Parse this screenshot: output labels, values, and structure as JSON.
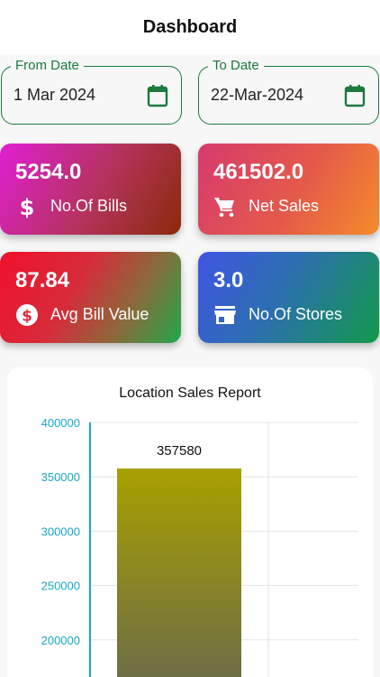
{
  "header": {
    "title": "Dashboard"
  },
  "filters": {
    "from": {
      "label": "From Date",
      "value": "1 Mar 2024",
      "icon": "calendar-icon"
    },
    "to": {
      "label": "To Date",
      "value": "22-Mar-2024",
      "icon": "calendar-icon"
    }
  },
  "cards": [
    {
      "value": "5254.0",
      "label": "No.Of Bills",
      "icon": "dollar-icon"
    },
    {
      "value": "461502.0",
      "label": "Net Sales",
      "icon": "cart-icon"
    },
    {
      "value": "87.84",
      "label": "Avg Bill Value",
      "icon": "dollar-circle-icon"
    },
    {
      "value": "3.0",
      "label": "No.Of Stores",
      "icon": "store-icon"
    }
  ],
  "colors": {
    "accent": "#1b7a3c",
    "axis": "#1aa6c8",
    "bar_top": "#a8a000",
    "bar_bottom": "#6a6a4a"
  },
  "chart_data": {
    "type": "bar",
    "title": "Location Sales Report",
    "categories": [
      ""
    ],
    "values": [
      357580
    ],
    "data_labels": [
      "357580"
    ],
    "y_ticks": [
      "400000",
      "350000",
      "300000",
      "250000",
      "200000"
    ],
    "y_visible_range": [
      185000,
      400000
    ],
    "grid": true
  }
}
